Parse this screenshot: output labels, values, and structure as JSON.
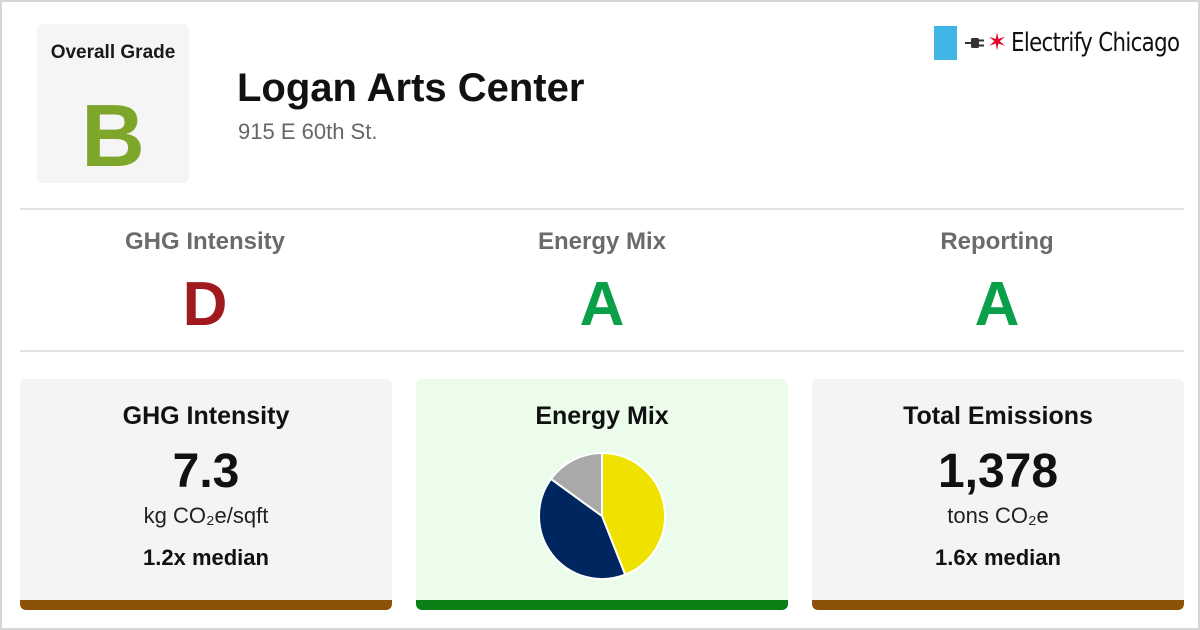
{
  "overall": {
    "label": "Overall Grade",
    "grade": "B",
    "color": "#7ea62a"
  },
  "building": {
    "name": "Logan Arts Center",
    "address": "915 E 60th St."
  },
  "logo": {
    "text": "Electrify Chicago",
    "icons": [
      "chicago-flag-icon",
      "plug-icon",
      "star-icon"
    ],
    "flag_color": "#41b6e6",
    "star_color": "#e4002b"
  },
  "subgrades": [
    {
      "label": "GHG Intensity",
      "grade": "D",
      "color": "#a0191d"
    },
    {
      "label": "Energy Mix",
      "grade": "A",
      "color": "#0a9f49"
    },
    {
      "label": "Reporting",
      "grade": "A",
      "color": "#0a9f49"
    }
  ],
  "cards": {
    "ghg": {
      "title": "GHG Intensity",
      "value": "7.3",
      "unit": "kg CO₂e/sqft",
      "median": "1.2x median",
      "bar_color": "#8b5208"
    },
    "mix": {
      "title": "Energy Mix",
      "bar_color": "#0b7f16"
    },
    "total": {
      "title": "Total Emissions",
      "value": "1,378",
      "unit": "tons CO₂e",
      "median": "1.6x median",
      "bar_color": "#8b5208"
    }
  },
  "chart_data": {
    "type": "pie",
    "title": "",
    "slices": [
      {
        "value": 44,
        "color": "#f0e200"
      },
      {
        "value": 41,
        "color": "#002660"
      },
      {
        "value": 15,
        "color": "#a9a9a9"
      }
    ]
  }
}
